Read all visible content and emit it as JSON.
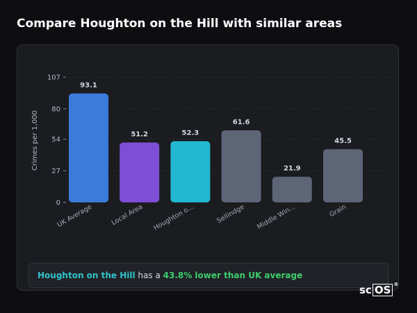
{
  "title": "Compare Houghton on the Hill with similar areas",
  "chart_data": {
    "type": "bar",
    "ylabel": "Crimes per 1,000",
    "yticks": [
      0,
      27,
      54,
      80,
      107
    ],
    "ylim": [
      0,
      107
    ],
    "grid": true,
    "categories": [
      "UK Average",
      "Local Area",
      "Houghton o...",
      "Sellindge",
      "Middle Win...",
      "Grain"
    ],
    "values": [
      93.1,
      51.2,
      52.3,
      61.6,
      21.9,
      45.5
    ],
    "value_labels": [
      "93.1",
      "51.2",
      "52.3",
      "61.6",
      "21.9",
      "45.5"
    ],
    "colors": [
      "#3a7bdc",
      "#7e4ed6",
      "#22b8cf",
      "#5d6577",
      "#5d6577",
      "#5d6577"
    ]
  },
  "summary": {
    "area": "Houghton on the Hill",
    "middle": " has a ",
    "stat": "43.8% lower than UK average"
  },
  "logo": {
    "prefix": "sc",
    "boxed": "OS",
    "mark": "®"
  }
}
